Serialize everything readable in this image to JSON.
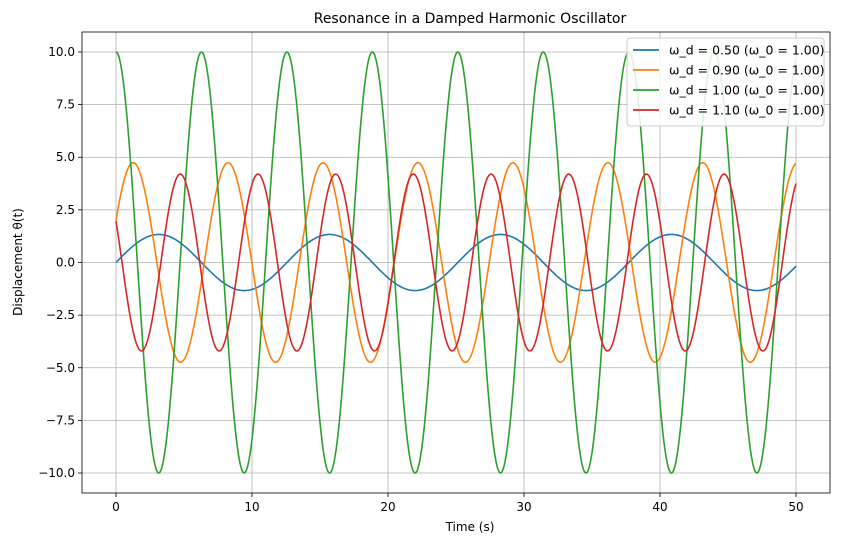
{
  "chart_data": {
    "type": "line",
    "title": "Resonance in a Damped Harmonic Oscillator",
    "xlabel": "Time (s)",
    "ylabel": "Displacement θ(t)",
    "xlim": [
      -2.5,
      52.5
    ],
    "ylim": [
      -10.95,
      10.95
    ],
    "x_ticks": [
      0,
      10,
      20,
      30,
      40,
      50
    ],
    "y_ticks": [
      -10.0,
      -7.5,
      -5.0,
      -2.5,
      0.0,
      2.5,
      5.0,
      7.5,
      10.0
    ],
    "x_tick_labels": [
      "0",
      "10",
      "20",
      "30",
      "40",
      "50"
    ],
    "y_tick_labels": [
      "−10.0",
      "−7.5",
      "−5.0",
      "−2.5",
      "0.0",
      "2.5",
      "5.0",
      "7.5",
      "10.0"
    ],
    "grid": true,
    "legend_position": "top-right",
    "x_range": [
      0,
      50
    ],
    "series": [
      {
        "name": "ω_d = 0.50 (ω_0 = 1.00)",
        "color": "#1f77b4",
        "omega": 0.5,
        "amplitude": 1.333,
        "phase_deg": 0
      },
      {
        "name": "ω_d = 0.90 (ω_0 = 1.00)",
        "color": "#ff7f0e",
        "omega": 0.9,
        "amplitude": 4.74,
        "phase_deg": 25
      },
      {
        "name": "ω_d = 1.00 (ω_0 = 1.00)",
        "color": "#2ca02c",
        "omega": 1.0,
        "amplitude": 10.0,
        "phase_deg": 90
      },
      {
        "name": "ω_d = 1.10 (ω_0 = 1.00)",
        "color": "#d62728",
        "omega": 1.1,
        "amplitude": 4.2,
        "phase_deg": 152
      }
    ]
  }
}
